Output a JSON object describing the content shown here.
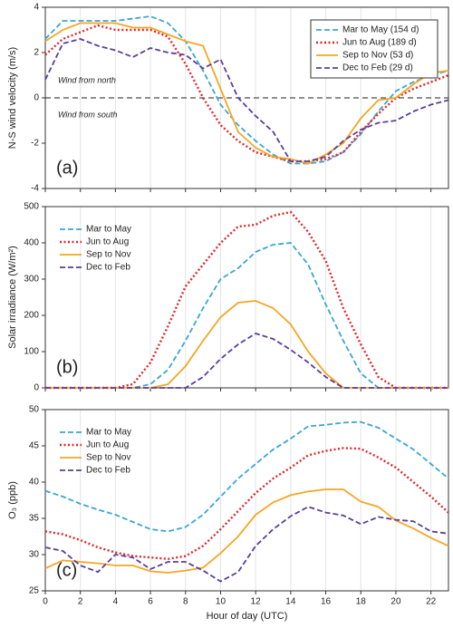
{
  "chart_data": [
    {
      "type": "line",
      "panel_label": "(a)",
      "y_label": "N-S wind velocity (m/s)",
      "annotations": [
        "Wind from north",
        "Wind from south"
      ],
      "reference_line": 0,
      "legend": "upper right",
      "legend_box": true,
      "grid": true,
      "x": [
        0,
        1,
        2,
        3,
        4,
        5,
        6,
        7,
        8,
        9,
        10,
        11,
        12,
        13,
        14,
        15,
        16,
        17,
        18,
        19,
        20,
        21,
        22,
        23
      ],
      "xlim": [
        0,
        23
      ],
      "xticks": [
        0,
        2,
        4,
        6,
        8,
        10,
        12,
        14,
        16,
        18,
        20,
        22
      ],
      "ylim": [
        -4,
        4
      ],
      "yticks": [
        -4,
        -2,
        0,
        2,
        4
      ],
      "series": [
        {
          "name": "Mar to May (154 d)",
          "color": "#3ca6d2",
          "style": "dashed",
          "values": [
            2.6,
            3.4,
            3.4,
            3.4,
            3.4,
            3.5,
            3.6,
            3.3,
            2.5,
            1.2,
            -0.3,
            -1.2,
            -1.9,
            -2.5,
            -2.9,
            -2.9,
            -2.8,
            -2.4,
            -1.6,
            -0.6,
            0.3,
            0.7,
            1.0,
            1.2
          ]
        },
        {
          "name": "Jun to Aug (189 d)",
          "color": "#e0262b",
          "style": "dotted",
          "values": [
            1.9,
            2.6,
            2.9,
            3.2,
            3.0,
            3.0,
            3.0,
            2.7,
            1.5,
            0.0,
            -1.2,
            -1.9,
            -2.4,
            -2.6,
            -2.8,
            -2.8,
            -2.7,
            -2.4,
            -1.5,
            -0.7,
            0.0,
            0.4,
            0.7,
            1.0
          ]
        },
        {
          "name": "Sep to Nov (53 d)",
          "color": "#f5a623",
          "style": "solid",
          "values": [
            2.5,
            3.0,
            3.3,
            3.3,
            3.3,
            3.1,
            3.1,
            2.8,
            2.5,
            2.3,
            0.4,
            -1.5,
            -2.2,
            -2.6,
            -2.7,
            -2.9,
            -2.5,
            -2.0,
            -0.9,
            -0.1,
            0.0,
            0.6,
            1.1,
            1.2
          ]
        },
        {
          "name": "Dec to Feb (29 d)",
          "color": "#5b3f9a",
          "style": "dashed",
          "values": [
            0.8,
            2.4,
            2.6,
            2.3,
            2.1,
            1.8,
            2.2,
            2.0,
            1.9,
            1.3,
            1.7,
            0.0,
            -0.8,
            -1.5,
            -2.8,
            -2.8,
            -2.6,
            -1.9,
            -1.4,
            -1.1,
            -1.0,
            -0.6,
            -0.3,
            -0.1
          ]
        }
      ]
    },
    {
      "type": "line",
      "panel_label": "(b)",
      "y_label": "Solar irradiance (W/m²)",
      "legend": "upper left",
      "legend_box": false,
      "grid": true,
      "x": [
        0,
        1,
        2,
        3,
        4,
        5,
        6,
        7,
        8,
        9,
        10,
        11,
        12,
        13,
        14,
        15,
        16,
        17,
        18,
        19,
        20,
        21,
        22,
        23
      ],
      "xlim": [
        0,
        23
      ],
      "xticks": [
        0,
        2,
        4,
        6,
        8,
        10,
        12,
        14,
        16,
        18,
        20,
        22
      ],
      "ylim": [
        0,
        500
      ],
      "yticks": [
        0,
        100,
        200,
        300,
        400,
        500
      ],
      "series": [
        {
          "name": "Mar to May",
          "color": "#3ca6d2",
          "style": "dashed",
          "values": [
            0,
            0,
            0,
            0,
            0,
            0,
            10,
            50,
            130,
            220,
            300,
            330,
            375,
            395,
            400,
            340,
            230,
            130,
            40,
            0,
            0,
            0,
            0,
            0
          ]
        },
        {
          "name": "Jun to Aug",
          "color": "#e0262b",
          "style": "dotted",
          "values": [
            0,
            0,
            0,
            0,
            0,
            10,
            70,
            170,
            280,
            340,
            400,
            445,
            450,
            475,
            485,
            430,
            350,
            220,
            120,
            30,
            0,
            0,
            0,
            0
          ]
        },
        {
          "name": "Sep to Nov",
          "color": "#f5a623",
          "style": "solid",
          "values": [
            0,
            0,
            0,
            0,
            0,
            0,
            0,
            10,
            60,
            130,
            195,
            235,
            240,
            220,
            175,
            100,
            40,
            0,
            0,
            0,
            0,
            0,
            0,
            0
          ]
        },
        {
          "name": "Dec to Feb",
          "color": "#5b3f9a",
          "style": "dashed",
          "values": [
            0,
            0,
            0,
            0,
            0,
            0,
            0,
            0,
            0,
            30,
            80,
            120,
            150,
            135,
            105,
            70,
            30,
            0,
            0,
            0,
            0,
            0,
            0,
            0
          ]
        }
      ]
    },
    {
      "type": "line",
      "panel_label": "(c)",
      "y_label": "O₃ (ppb)",
      "x_label": "Hour of day (UTC)",
      "legend": "upper left",
      "legend_box": false,
      "grid": true,
      "x": [
        0,
        1,
        2,
        3,
        4,
        5,
        6,
        7,
        8,
        9,
        10,
        11,
        12,
        13,
        14,
        15,
        16,
        17,
        18,
        19,
        20,
        21,
        22,
        23
      ],
      "xlim": [
        0,
        23
      ],
      "xticks": [
        0,
        2,
        4,
        6,
        8,
        10,
        12,
        14,
        16,
        18,
        20,
        22
      ],
      "ylim": [
        25,
        50
      ],
      "yticks": [
        25,
        30,
        35,
        40,
        45,
        50
      ],
      "series": [
        {
          "name": "Mar to May",
          "color": "#3ca6d2",
          "style": "dashed",
          "values": [
            38.8,
            38,
            37,
            36.2,
            35.5,
            34.5,
            33.5,
            33.2,
            33.8,
            35.5,
            38,
            40.5,
            42.5,
            44.5,
            46,
            47.7,
            47.9,
            48.2,
            48.3,
            47.5,
            46,
            44.5,
            42.5,
            40.5
          ]
        },
        {
          "name": "Jun to Aug",
          "color": "#e0262b",
          "style": "dotted",
          "values": [
            33.2,
            32.8,
            32,
            31,
            30.3,
            29.8,
            29.6,
            29.4,
            29.8,
            31.2,
            33.5,
            36,
            38.5,
            40.5,
            42,
            43.7,
            44.3,
            44.7,
            44.6,
            43.4,
            42,
            40,
            38,
            35.8
          ]
        },
        {
          "name": "Sep to Nov",
          "color": "#f5a623",
          "style": "solid",
          "values": [
            28.1,
            29.2,
            29,
            28.8,
            28.5,
            28.5,
            27.7,
            27.5,
            27.8,
            28.2,
            30.2,
            32.5,
            35.5,
            37.2,
            38.2,
            38.7,
            39,
            39,
            37.3,
            36.6,
            34.7,
            33.6,
            32.3,
            31.2
          ]
        },
        {
          "name": "Dec to Feb",
          "color": "#5b3f9a",
          "style": "dashed",
          "values": [
            31,
            30.5,
            28.5,
            27.6,
            30,
            29.6,
            28,
            29,
            29,
            27.8,
            26.3,
            27.6,
            31.2,
            33.5,
            35.3,
            36.6,
            35.8,
            35.4,
            34.2,
            35.2,
            34.8,
            34.6,
            33.2,
            32.9
          ]
        }
      ]
    }
  ]
}
